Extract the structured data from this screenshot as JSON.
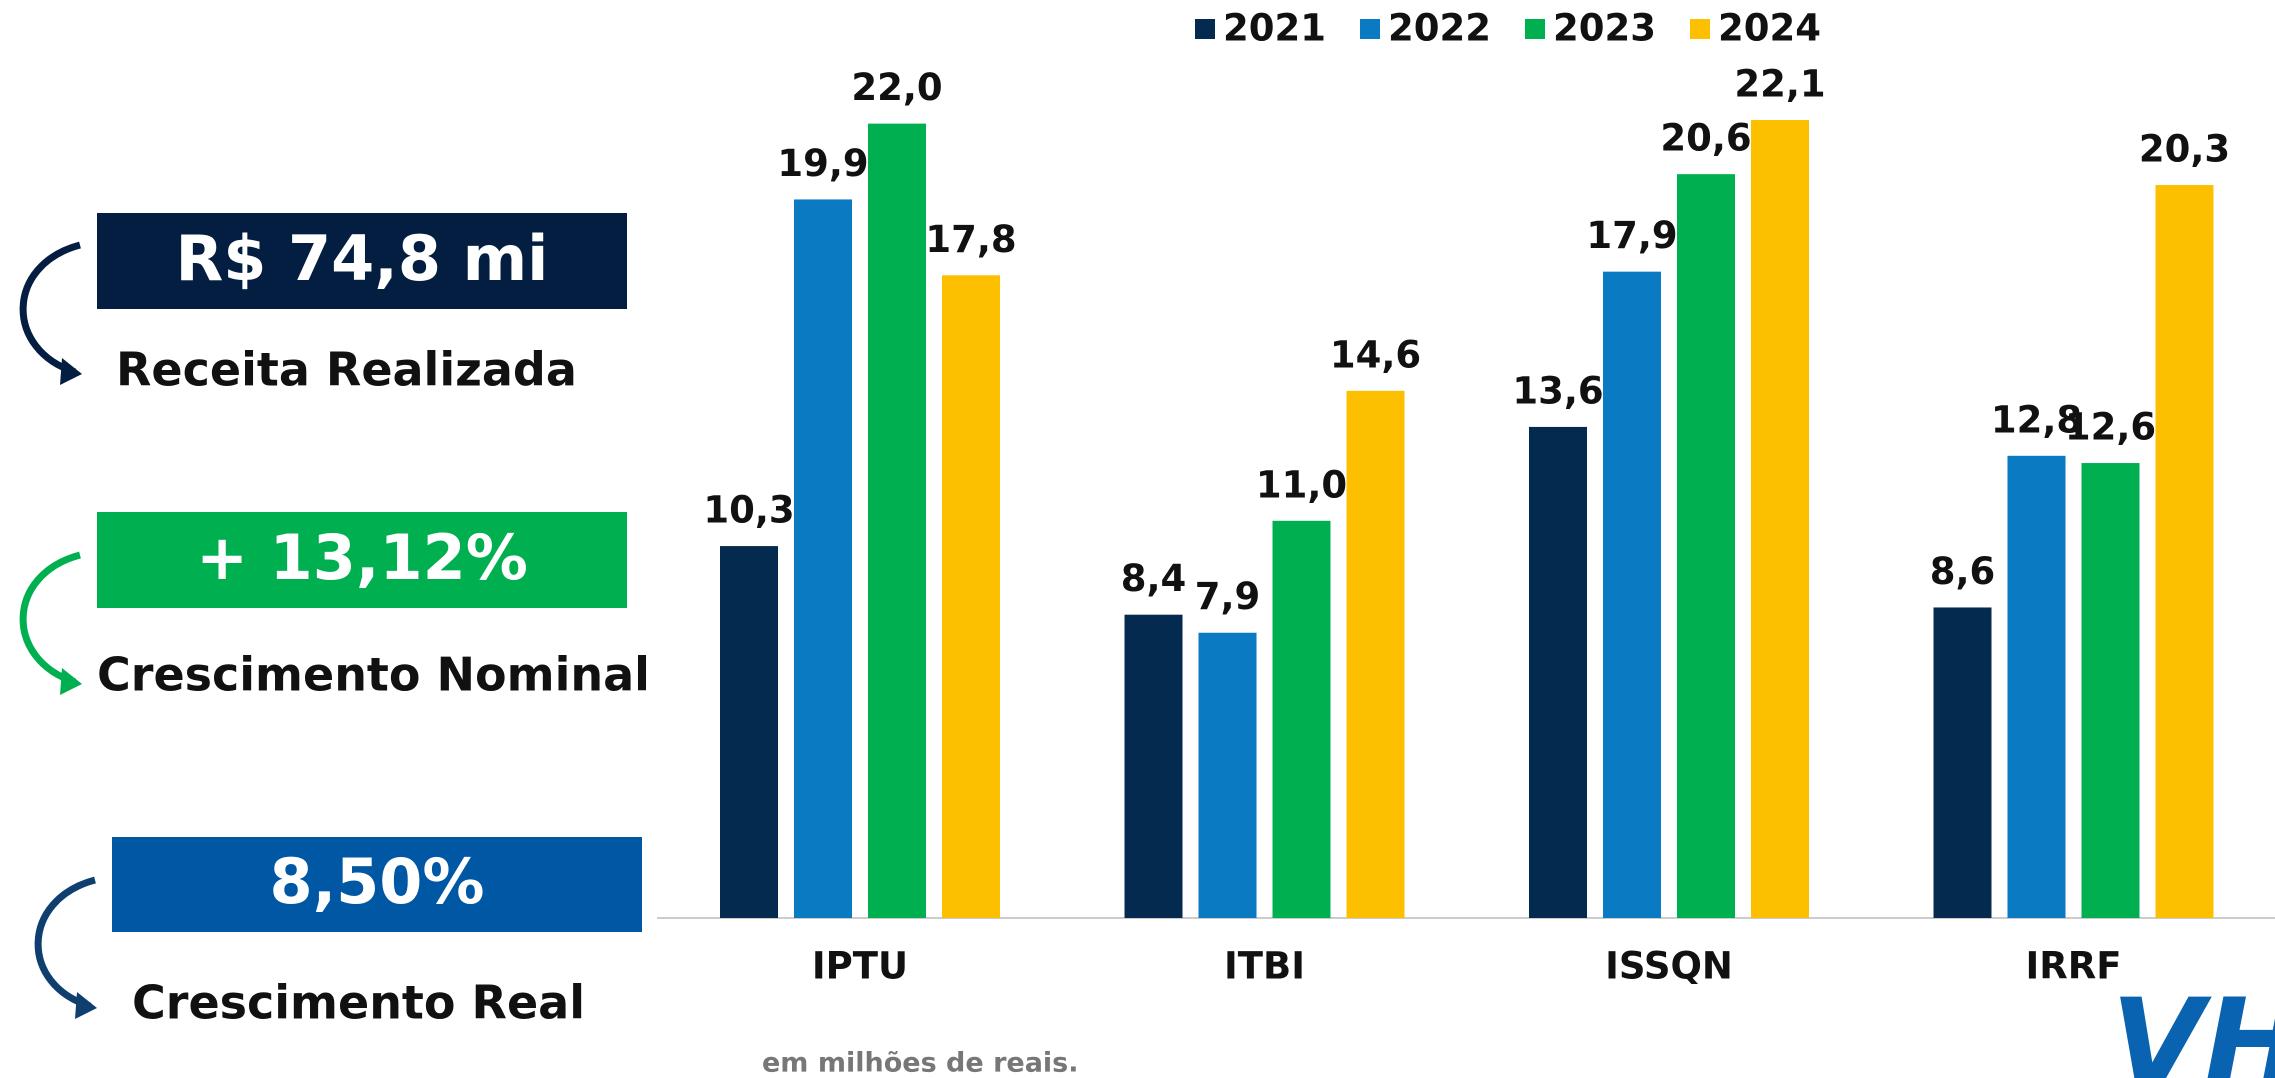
{
  "chart_data": {
    "type": "bar",
    "categories": [
      "IPTU",
      "ITBI",
      "ISSQN",
      "IRRF"
    ],
    "series": [
      {
        "name": "2021",
        "color": "#052a4f",
        "values": [
          10.3,
          8.4,
          13.6,
          8.6
        ],
        "value_labels": [
          "10,3",
          "8,4",
          "13,6",
          "8,6"
        ]
      },
      {
        "name": "2022",
        "color": "#0a7ac3",
        "values": [
          19.9,
          7.9,
          17.9,
          12.8
        ],
        "value_labels": [
          "19,9",
          "7,9",
          "17,9",
          "12,8"
        ]
      },
      {
        "name": "2023",
        "color": "#00b050",
        "values": [
          22.0,
          11.0,
          20.6,
          12.6
        ],
        "value_labels": [
          "22,0",
          "11,0",
          "20,6",
          "12,6"
        ]
      },
      {
        "name": "2024",
        "color": "#fcc000",
        "values": [
          17.8,
          14.6,
          22.1,
          20.3
        ],
        "value_labels": [
          "17,8",
          "14,6",
          "22,1",
          "20,3"
        ]
      }
    ],
    "legend": "top",
    "note": "em milhões de reais."
  },
  "panels": [
    {
      "value": "R$ 74,8 mi",
      "label": "Receita Realizada"
    },
    {
      "value": "+ 13,12%",
      "label": "Crescimento Nominal"
    },
    {
      "value": "8,50%",
      "label": "Crescimento Real"
    }
  ],
  "logo": "VH"
}
